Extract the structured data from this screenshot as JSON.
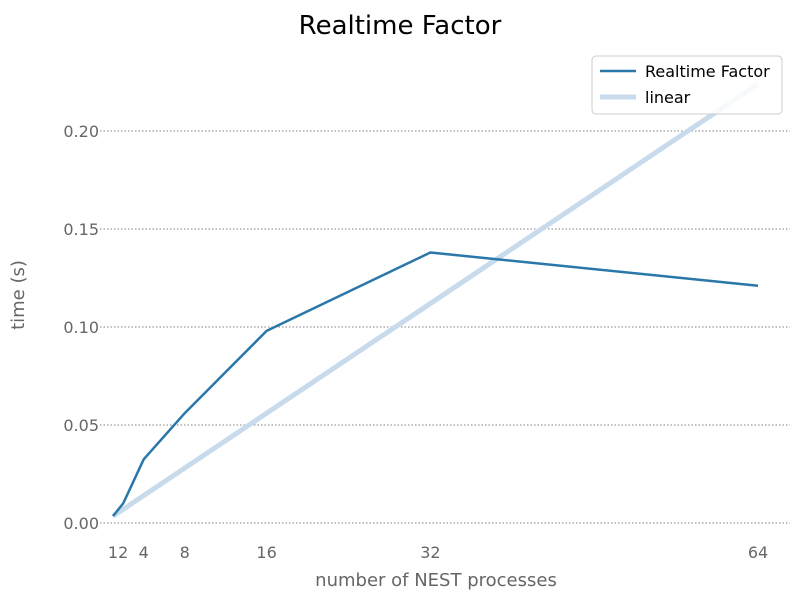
{
  "chart_data": {
    "type": "line",
    "title": "Realtime Factor",
    "xlabel": "number of NEST processes",
    "ylabel": "time (s)",
    "x": [
      1,
      2,
      4,
      8,
      16,
      32,
      64
    ],
    "xticks": [
      1,
      2,
      4,
      8,
      16,
      32,
      64
    ],
    "xtick_labels": [
      "1",
      "2",
      "4",
      "8",
      "16",
      "32",
      "64"
    ],
    "yticks": [
      0.0,
      0.05,
      0.1,
      0.15,
      0.2
    ],
    "ytick_labels": [
      "0.00",
      "0.05",
      "0.10",
      "0.15",
      "0.20"
    ],
    "xlim": [
      1,
      64
    ],
    "ylim": [
      0.0,
      0.23
    ],
    "grid": "horizontal",
    "legend_position": "top-right",
    "series": [
      {
        "name": "Realtime Factor",
        "values": [
          0.0035,
          0.01,
          0.0325,
          0.056,
          0.098,
          0.138,
          0.121
        ],
        "color": "#2a77a9"
      },
      {
        "name": "linear",
        "values": [
          0.0035,
          0.007,
          0.014,
          0.028,
          0.056,
          0.112,
          0.224
        ],
        "color": "#c8dbec"
      }
    ]
  }
}
